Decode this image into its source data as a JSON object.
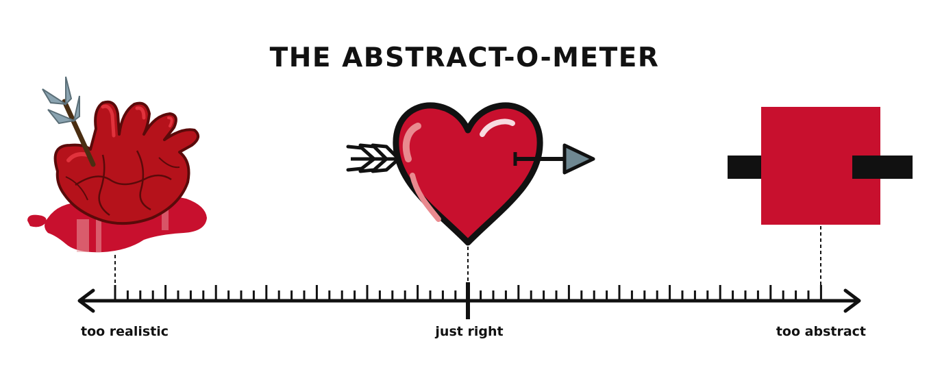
{
  "title": "THE ABSTRACT-O-METER",
  "scale": {
    "labels": {
      "left": "too realistic",
      "middle": "just right",
      "right": "too abstract"
    }
  },
  "icons": {
    "left": "realistic-anatomical-heart-with-arrow-icon",
    "middle": "cartoon-heart-with-arrow-icon",
    "right": "abstract-red-square-with-bar-icon"
  },
  "colors": {
    "heart_red": "#c8102e",
    "ink": "#111111",
    "arrow_feather": "#8aa3b0"
  }
}
